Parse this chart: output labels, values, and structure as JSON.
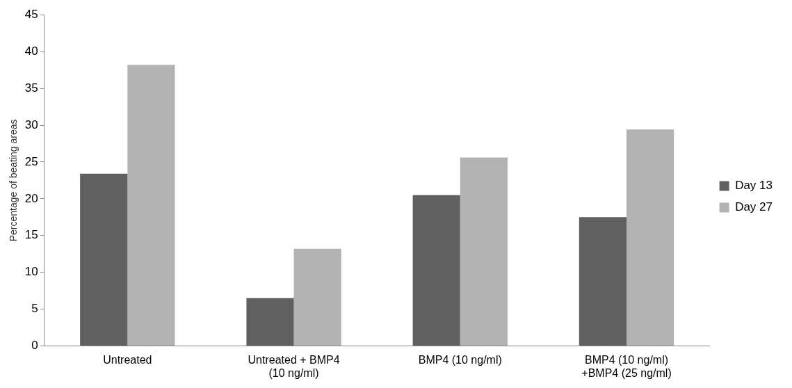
{
  "chart_data": {
    "type": "bar",
    "ylabel": "Percentage of beating areas",
    "categories": [
      "Untreated",
      "Untreated + BMP4 (10 ng/ml)",
      "BMP4 (10 ng/ml)",
      "BMP4 (10 ng/ml) +BMP4 (25 ng/ml)"
    ],
    "series": [
      {
        "name": "Day 13",
        "color": "#606060",
        "values": [
          23.4,
          6.5,
          20.5,
          17.5
        ]
      },
      {
        "name": "Day 27",
        "color": "#b2b2b2",
        "values": [
          38.2,
          13.2,
          25.6,
          29.4
        ]
      }
    ],
    "ylim": [
      0,
      45
    ],
    "yticks": [
      0,
      5,
      10,
      15,
      20,
      25,
      30,
      35,
      40,
      45
    ],
    "grid": false,
    "legend": "right"
  }
}
